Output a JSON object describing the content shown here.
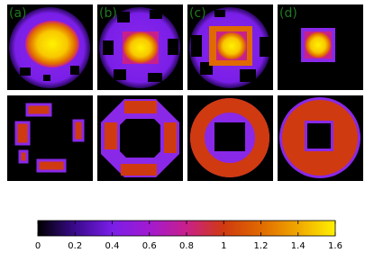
{
  "panels": {
    "labels": [
      "(a)",
      "(b)",
      "(c)",
      "(d)"
    ]
  },
  "colorbar": {
    "lim": [
      0,
      1.6
    ],
    "ticks": [
      0,
      0.2,
      0.4,
      0.6,
      0.8,
      1,
      1.2,
      1.4,
      1.6
    ],
    "colors": [
      "#000000",
      "#3a0a8c",
      "#7a1ee8",
      "#a21ad0",
      "#c8208a",
      "#d03a10",
      "#e06a00",
      "#f0a800",
      "#fff000"
    ]
  }
}
